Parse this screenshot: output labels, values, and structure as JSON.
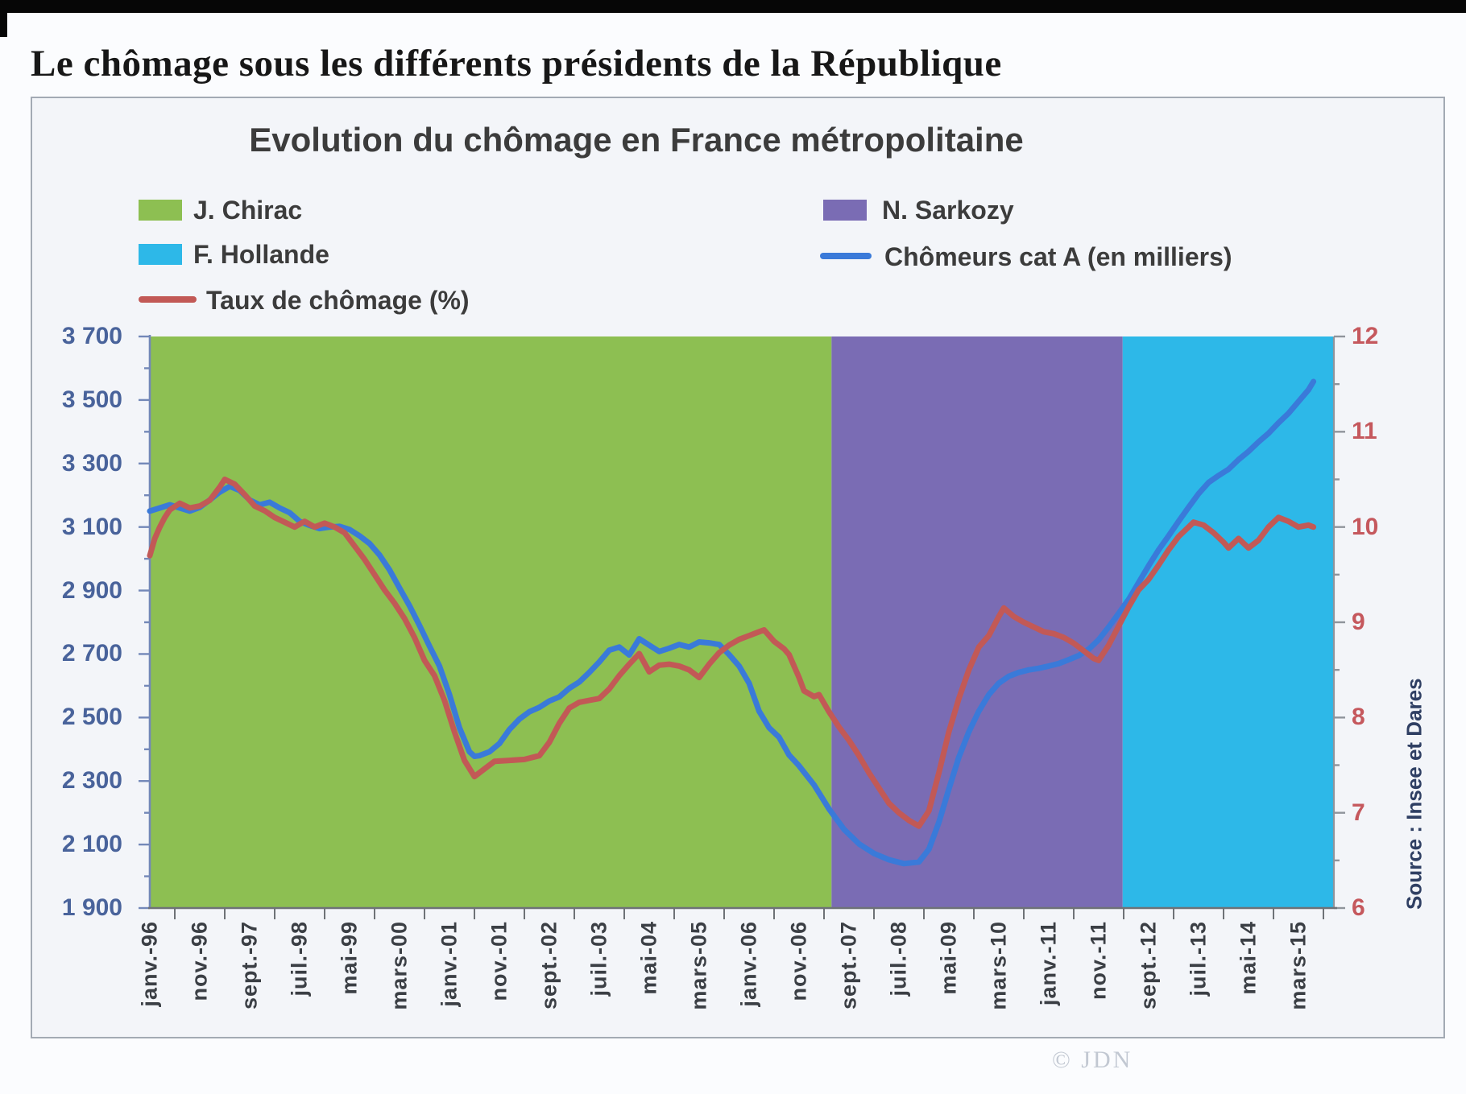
{
  "page": {
    "title": "Le chômage sous les différents présidents de la République",
    "watermark": "© JDN"
  },
  "chart": {
    "title": "Evolution du chômage en France métropolitaine",
    "source_note": "Source : Insee et Dares",
    "legend": [
      {
        "label": "J. Chirac",
        "type": "area",
        "color": "#8dbf52"
      },
      {
        "label": "N. Sarkozy",
        "type": "area",
        "color": "#7a6cb4"
      },
      {
        "label": "F. Hollande",
        "type": "area",
        "color": "#2db8e8"
      },
      {
        "label": "Chômeurs cat A (en milliers)",
        "type": "line",
        "color": "#3a7ad9"
      },
      {
        "label": "Taux de chômage (%)",
        "type": "line",
        "color": "#c25956"
      }
    ]
  },
  "chart_data": {
    "type": "line",
    "title": "Evolution du chômage en France métropolitaine",
    "grid": false,
    "legend_position": "top",
    "x_unit": "months since Jan 1996",
    "x_tick_months": [
      0,
      10,
      20,
      30,
      40,
      50,
      60,
      70,
      80,
      90,
      100,
      110,
      120,
      130,
      140,
      150,
      160,
      170,
      180,
      190,
      200,
      210,
      220,
      230
    ],
    "x_tick_labels": [
      "janv.-96",
      "nov.-96",
      "sept.-97",
      "juil.-98",
      "mai-99",
      "mars-00",
      "janv.-01",
      "nov.-01",
      "sept.-02",
      "juil.-03",
      "mai-04",
      "mars-05",
      "janv.-06",
      "nov.-06",
      "sept.-07",
      "juil.-08",
      "mai-09",
      "mars-10",
      "janv.-11",
      "nov.-11",
      "sept.-12",
      "juil.-13",
      "mai-14",
      "mars-15"
    ],
    "left_axis": {
      "label": "Chômeurs cat A (en milliers)",
      "min": 1900,
      "max": 3700,
      "tick_step": 200,
      "minor_step": 100,
      "tick_labels": [
        "3 700",
        "3 500",
        "3 300",
        "3 100",
        "2 900",
        "2 700",
        "2 500",
        "2 300",
        "2 100",
        "1 900"
      ]
    },
    "right_axis": {
      "label": "Taux de chômage (%)",
      "min": 6,
      "max": 12,
      "tick_step": 1,
      "minor_step": 0.5,
      "tick_labels": [
        "12",
        "11",
        "10",
        "9",
        "8",
        "7",
        "6"
      ]
    },
    "bands": [
      {
        "label": "J. Chirac",
        "from_month": 0,
        "to_month": 136.5,
        "color": "#8dbf52"
      },
      {
        "label": "N. Sarkozy",
        "from_month": 136.5,
        "to_month": 194.8,
        "color": "#7a6cb4"
      },
      {
        "label": "F. Hollande",
        "from_month": 194.8,
        "to_month": 237.2,
        "color": "#2db8e8"
      }
    ],
    "series": [
      {
        "name": "Chômeurs cat A (en milliers)",
        "axis": "left",
        "color": "#3a7ad9",
        "points": [
          [
            0,
            3150
          ],
          [
            2,
            3160
          ],
          [
            4,
            3170
          ],
          [
            6,
            3160
          ],
          [
            8,
            3150
          ],
          [
            10,
            3162
          ],
          [
            12,
            3185
          ],
          [
            14,
            3210
          ],
          [
            16,
            3228
          ],
          [
            18,
            3215
          ],
          [
            20,
            3185
          ],
          [
            22,
            3170
          ],
          [
            24,
            3178
          ],
          [
            26,
            3160
          ],
          [
            28,
            3145
          ],
          [
            30,
            3118
          ],
          [
            32,
            3105
          ],
          [
            34,
            3095
          ],
          [
            36,
            3100
          ],
          [
            38,
            3102
          ],
          [
            40,
            3092
          ],
          [
            42,
            3072
          ],
          [
            44,
            3048
          ],
          [
            46,
            3012
          ],
          [
            48,
            2965
          ],
          [
            50,
            2908
          ],
          [
            52,
            2852
          ],
          [
            54,
            2790
          ],
          [
            56,
            2725
          ],
          [
            58,
            2662
          ],
          [
            60,
            2572
          ],
          [
            62,
            2468
          ],
          [
            64,
            2392
          ],
          [
            65,
            2378
          ],
          [
            66,
            2380
          ],
          [
            68,
            2392
          ],
          [
            70,
            2418
          ],
          [
            72,
            2462
          ],
          [
            74,
            2495
          ],
          [
            76,
            2518
          ],
          [
            78,
            2532
          ],
          [
            80,
            2552
          ],
          [
            82,
            2565
          ],
          [
            84,
            2592
          ],
          [
            86,
            2612
          ],
          [
            88,
            2642
          ],
          [
            90,
            2675
          ],
          [
            92,
            2712
          ],
          [
            94,
            2722
          ],
          [
            96,
            2697
          ],
          [
            98,
            2748
          ],
          [
            100,
            2728
          ],
          [
            102,
            2708
          ],
          [
            104,
            2718
          ],
          [
            106,
            2730
          ],
          [
            108,
            2722
          ],
          [
            110,
            2738
          ],
          [
            112,
            2735
          ],
          [
            114,
            2730
          ],
          [
            116,
            2698
          ],
          [
            118,
            2662
          ],
          [
            120,
            2608
          ],
          [
            122,
            2520
          ],
          [
            124,
            2468
          ],
          [
            126,
            2438
          ],
          [
            128,
            2382
          ],
          [
            130,
            2348
          ],
          [
            133,
            2288
          ],
          [
            136,
            2212
          ],
          [
            139,
            2148
          ],
          [
            142,
            2102
          ],
          [
            145,
            2072
          ],
          [
            148,
            2052
          ],
          [
            151,
            2040
          ],
          [
            154,
            2045
          ],
          [
            156,
            2085
          ],
          [
            158,
            2170
          ],
          [
            160,
            2275
          ],
          [
            162,
            2375
          ],
          [
            164,
            2455
          ],
          [
            166,
            2520
          ],
          [
            168,
            2572
          ],
          [
            170,
            2608
          ],
          [
            172,
            2630
          ],
          [
            174,
            2642
          ],
          [
            176,
            2650
          ],
          [
            178,
            2655
          ],
          [
            180,
            2662
          ],
          [
            182,
            2670
          ],
          [
            184,
            2682
          ],
          [
            186,
            2695
          ],
          [
            188,
            2715
          ],
          [
            190,
            2745
          ],
          [
            192,
            2785
          ],
          [
            194,
            2828
          ],
          [
            196,
            2872
          ],
          [
            198,
            2925
          ],
          [
            200,
            2978
          ],
          [
            202,
            3028
          ],
          [
            204,
            3072
          ],
          [
            206,
            3118
          ],
          [
            208,
            3162
          ],
          [
            210,
            3205
          ],
          [
            212,
            3240
          ],
          [
            214,
            3262
          ],
          [
            216,
            3282
          ],
          [
            218,
            3312
          ],
          [
            220,
            3338
          ],
          [
            222,
            3368
          ],
          [
            224,
            3395
          ],
          [
            226,
            3428
          ],
          [
            228,
            3458
          ],
          [
            230,
            3495
          ],
          [
            232,
            3532
          ],
          [
            233,
            3558
          ]
        ]
      },
      {
        "name": "Taux de chômage (%)",
        "axis": "right",
        "color": "#c25956",
        "points": [
          [
            0,
            9.7
          ],
          [
            1,
            9.88
          ],
          [
            2,
            10.0
          ],
          [
            3,
            10.1
          ],
          [
            4,
            10.18
          ],
          [
            6,
            10.25
          ],
          [
            8,
            10.2
          ],
          [
            10,
            10.22
          ],
          [
            12,
            10.28
          ],
          [
            14,
            10.42
          ],
          [
            15,
            10.5
          ],
          [
            17,
            10.45
          ],
          [
            19,
            10.34
          ],
          [
            21,
            10.22
          ],
          [
            23,
            10.17
          ],
          [
            25,
            10.1
          ],
          [
            27,
            10.05
          ],
          [
            29,
            10.0
          ],
          [
            31,
            10.06
          ],
          [
            33,
            10.0
          ],
          [
            35,
            10.04
          ],
          [
            37,
            10.0
          ],
          [
            39,
            9.94
          ],
          [
            41,
            9.8
          ],
          [
            43,
            9.66
          ],
          [
            45,
            9.5
          ],
          [
            47,
            9.34
          ],
          [
            49,
            9.2
          ],
          [
            51,
            9.04
          ],
          [
            53,
            8.84
          ],
          [
            55,
            8.6
          ],
          [
            57,
            8.44
          ],
          [
            59,
            8.18
          ],
          [
            61,
            7.85
          ],
          [
            63,
            7.55
          ],
          [
            65,
            7.38
          ],
          [
            67,
            7.46
          ],
          [
            69,
            7.54
          ],
          [
            72,
            7.55
          ],
          [
            75,
            7.56
          ],
          [
            78,
            7.6
          ],
          [
            80,
            7.74
          ],
          [
            82,
            7.94
          ],
          [
            84,
            8.1
          ],
          [
            86,
            8.16
          ],
          [
            88,
            8.18
          ],
          [
            90,
            8.2
          ],
          [
            92,
            8.3
          ],
          [
            94,
            8.44
          ],
          [
            96,
            8.56
          ],
          [
            98,
            8.67
          ],
          [
            100,
            8.48
          ],
          [
            102,
            8.55
          ],
          [
            104,
            8.56
          ],
          [
            106,
            8.54
          ],
          [
            108,
            8.5
          ],
          [
            110,
            8.42
          ],
          [
            112,
            8.56
          ],
          [
            114,
            8.68
          ],
          [
            116,
            8.76
          ],
          [
            118,
            8.82
          ],
          [
            120,
            8.86
          ],
          [
            122,
            8.9
          ],
          [
            123,
            8.92
          ],
          [
            125,
            8.8
          ],
          [
            127,
            8.72
          ],
          [
            128,
            8.66
          ],
          [
            130,
            8.42
          ],
          [
            131,
            8.28
          ],
          [
            133,
            8.22
          ],
          [
            134,
            8.24
          ],
          [
            136,
            8.06
          ],
          [
            138,
            7.9
          ],
          [
            140,
            7.76
          ],
          [
            142,
            7.6
          ],
          [
            144,
            7.42
          ],
          [
            146,
            7.26
          ],
          [
            148,
            7.1
          ],
          [
            150,
            7.0
          ],
          [
            152,
            6.92
          ],
          [
            154,
            6.86
          ],
          [
            156,
            7.02
          ],
          [
            158,
            7.42
          ],
          [
            160,
            7.85
          ],
          [
            162,
            8.2
          ],
          [
            164,
            8.5
          ],
          [
            166,
            8.74
          ],
          [
            168,
            8.86
          ],
          [
            170,
            9.06
          ],
          [
            171,
            9.15
          ],
          [
            173,
            9.06
          ],
          [
            175,
            9.0
          ],
          [
            177,
            8.95
          ],
          [
            179,
            8.9
          ],
          [
            181,
            8.88
          ],
          [
            183,
            8.84
          ],
          [
            185,
            8.78
          ],
          [
            187,
            8.7
          ],
          [
            189,
            8.62
          ],
          [
            190,
            8.6
          ],
          [
            192,
            8.76
          ],
          [
            194,
            8.96
          ],
          [
            196,
            9.16
          ],
          [
            198,
            9.34
          ],
          [
            200,
            9.45
          ],
          [
            202,
            9.6
          ],
          [
            204,
            9.76
          ],
          [
            206,
            9.9
          ],
          [
            208,
            10.0
          ],
          [
            209,
            10.05
          ],
          [
            211,
            10.02
          ],
          [
            213,
            9.94
          ],
          [
            215,
            9.84
          ],
          [
            216,
            9.78
          ],
          [
            218,
            9.88
          ],
          [
            220,
            9.78
          ],
          [
            222,
            9.86
          ],
          [
            224,
            10.0
          ],
          [
            226,
            10.1
          ],
          [
            228,
            10.06
          ],
          [
            230,
            10.0
          ],
          [
            232,
            10.02
          ],
          [
            233,
            10.0
          ]
        ]
      }
    ]
  }
}
